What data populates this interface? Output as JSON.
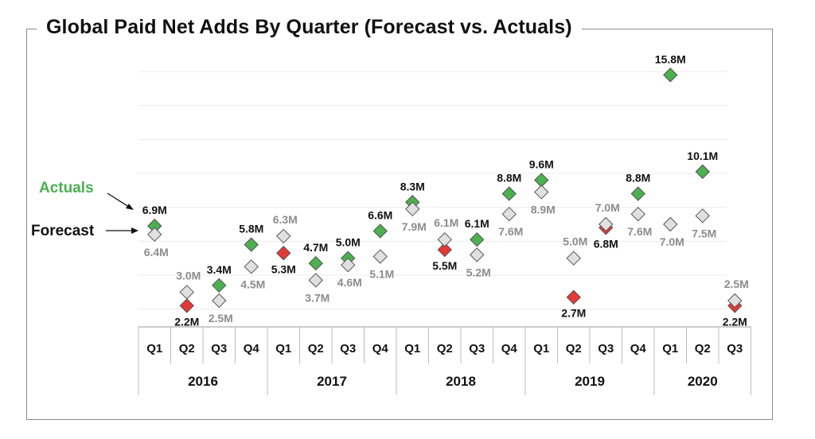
{
  "title": "Global Paid Net Adds By Quarter (Forecast vs. Actuals)",
  "legend": {
    "actuals_label": "Actuals",
    "forecast_label": "Forecast"
  },
  "colors": {
    "actual_beat": "#4caf50",
    "actual_miss": "#e53935",
    "forecast_fill": "#e0e0e0",
    "actuals_text": "#4caf50",
    "forecast_value_text": "#8c8c8c",
    "actual_value_text": "#111111"
  },
  "chart_data": {
    "type": "scatter",
    "title": "Global Paid Net Adds By Quarter (Forecast vs. Actuals)",
    "unit": "M",
    "ylim": [
      1,
      16
    ],
    "gridlines": true,
    "categories": [
      {
        "q": "Q1",
        "year": "2016"
      },
      {
        "q": "Q2",
        "year": "2016"
      },
      {
        "q": "Q3",
        "year": "2016"
      },
      {
        "q": "Q4",
        "year": "2016"
      },
      {
        "q": "Q1",
        "year": "2017"
      },
      {
        "q": "Q2",
        "year": "2017"
      },
      {
        "q": "Q3",
        "year": "2017"
      },
      {
        "q": "Q4",
        "year": "2017"
      },
      {
        "q": "Q1",
        "year": "2018"
      },
      {
        "q": "Q2",
        "year": "2018"
      },
      {
        "q": "Q3",
        "year": "2018"
      },
      {
        "q": "Q4",
        "year": "2018"
      },
      {
        "q": "Q1",
        "year": "2019"
      },
      {
        "q": "Q2",
        "year": "2019"
      },
      {
        "q": "Q3",
        "year": "2019"
      },
      {
        "q": "Q4",
        "year": "2019"
      },
      {
        "q": "Q1",
        "year": "2020"
      },
      {
        "q": "Q2",
        "year": "2020"
      },
      {
        "q": "Q3",
        "year": "2020"
      }
    ],
    "years": [
      "2016",
      "2017",
      "2018",
      "2019",
      "2020"
    ],
    "series": [
      {
        "name": "Actuals",
        "values": [
          6.9,
          2.2,
          3.4,
          5.8,
          5.3,
          4.7,
          5.0,
          6.6,
          8.3,
          5.5,
          6.1,
          8.8,
          9.6,
          2.7,
          6.8,
          8.8,
          15.8,
          10.1,
          2.2
        ],
        "labels": [
          "6.9M",
          "2.2M",
          "3.4M",
          "5.8M",
          "5.3M",
          "4.7M",
          "5.0M",
          "6.6M",
          "8.3M",
          "5.5M",
          "6.1M",
          "8.8M",
          "9.6M",
          "2.7M",
          "6.8M",
          "8.8M",
          "15.8M",
          "10.1M",
          "2.2M"
        ]
      },
      {
        "name": "Forecast",
        "values": [
          6.4,
          3.0,
          2.5,
          4.5,
          6.3,
          3.7,
          4.6,
          5.1,
          7.9,
          6.1,
          5.2,
          7.6,
          8.9,
          5.0,
          7.0,
          7.6,
          7.0,
          7.5,
          2.5
        ],
        "labels": [
          "6.4M",
          "3.0M",
          "2.5M",
          "4.5M",
          "6.3M",
          "3.7M",
          "4.6M",
          "5.1M",
          "7.9M",
          "6.1M",
          "5.2M",
          "7.6M",
          "8.9M",
          "5.0M",
          "7.0M",
          "7.6M",
          "7.0M",
          "7.5M",
          "2.5M"
        ]
      }
    ]
  }
}
